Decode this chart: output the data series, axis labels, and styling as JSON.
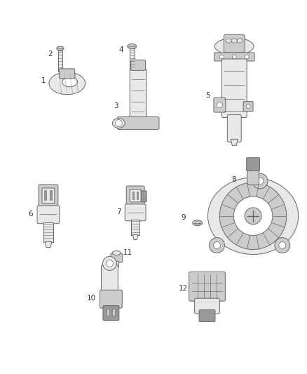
{
  "background_color": "#ffffff",
  "fig_width": 4.38,
  "fig_height": 5.33,
  "dpi": 100,
  "lc": "#666666",
  "fc_light": "#e8e8e8",
  "fc_mid": "#cccccc",
  "fc_dark": "#999999",
  "lw": 0.7
}
